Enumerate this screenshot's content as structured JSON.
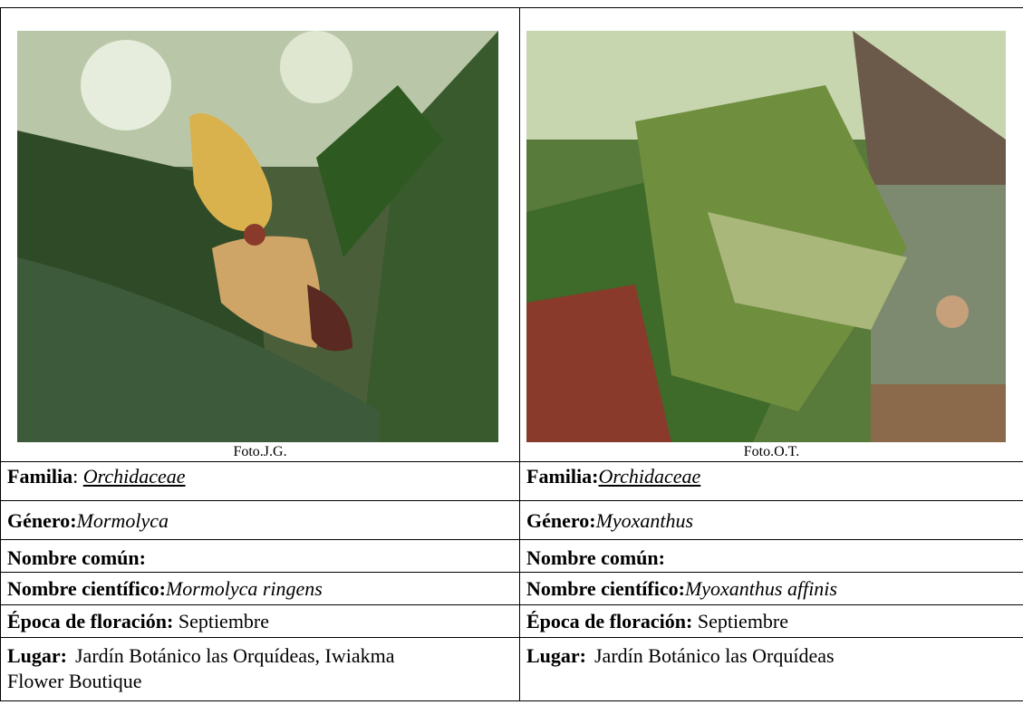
{
  "columns": [
    {
      "photo_credit": "Foto.J.G.",
      "familia": {
        "label": "Familia",
        "sep": ": ",
        "value": "Orchidaceae"
      },
      "genero": {
        "label": "Género:",
        "value": "Mormolyca"
      },
      "nombre_comun": {
        "label": "Nombre común:"
      },
      "nombre_cientifico": {
        "label": "Nombre científico:",
        "value": "Mormolyca ringens"
      },
      "epoca": {
        "label": "Época de floración:",
        "value": "Septiembre"
      },
      "lugar": {
        "label": "Lugar:",
        "value": "Jardín Botánico las Orquídeas, Iwiakma Flower Boutique"
      }
    },
    {
      "photo_credit": "Foto.O.T.",
      "familia": {
        "label": "Familia:",
        "value": "Orchidaceae"
      },
      "genero": {
        "label": "Género:",
        "value": "Myoxanthus"
      },
      "nombre_comun": {
        "label": "Nombre común:"
      },
      "nombre_cientifico": {
        "label": "Nombre científico:",
        "value": "Myoxanthus affinis"
      },
      "epoca": {
        "label": "Época de floración:",
        "value": "Septiembre"
      },
      "lugar": {
        "label": "Lugar:",
        "value": "Jardín Botánico las Orquídeas"
      }
    }
  ]
}
